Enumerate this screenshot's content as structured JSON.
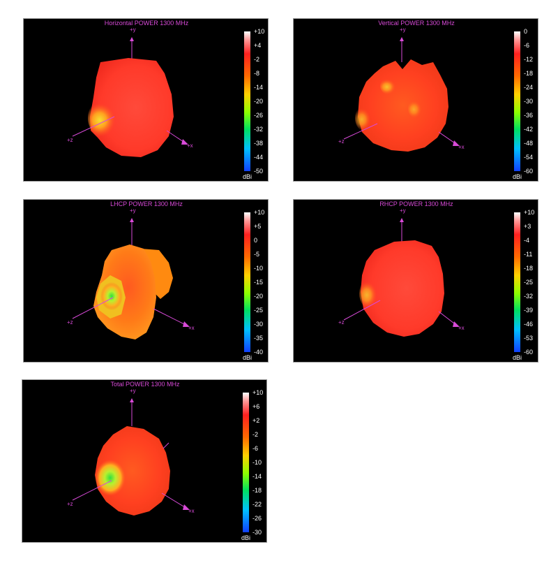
{
  "colors": {
    "axis": "#d84ad8",
    "background": "#000000"
  },
  "axis_labels": {
    "y": "+y",
    "x": "+x",
    "z": "+z"
  },
  "unit": "dBi",
  "panels": {
    "horizontal": {
      "title": "Horizontal POWER 1300  MHz",
      "scale": [
        "+10",
        "+4",
        "-2",
        "-8",
        "-14",
        "-20",
        "-26",
        "-32",
        "-38",
        "-44",
        "-50"
      ]
    },
    "vertical": {
      "title": "Vertical POWER 1300  MHz",
      "scale": [
        "0",
        "-6",
        "-12",
        "-18",
        "-24",
        "-30",
        "-36",
        "-42",
        "-48",
        "-54",
        "-60"
      ]
    },
    "lhcp": {
      "title": "LHCP POWER 1300  MHz",
      "scale": [
        "+10",
        "+5",
        "0",
        "-5",
        "-10",
        "-15",
        "-20",
        "-25",
        "-30",
        "-35",
        "-40"
      ]
    },
    "rhcp": {
      "title": "RHCP POWER 1300  MHz",
      "scale": [
        "+10",
        "+3",
        "-4",
        "-11",
        "-18",
        "-25",
        "-32",
        "-39",
        "-46",
        "-53",
        "-60"
      ]
    },
    "total": {
      "title": "Total POWER 1300  MHz",
      "scale": [
        "+10",
        "+6",
        "+2",
        "-2",
        "-6",
        "-10",
        "-14",
        "-18",
        "-22",
        "-26",
        "-30"
      ]
    }
  }
}
